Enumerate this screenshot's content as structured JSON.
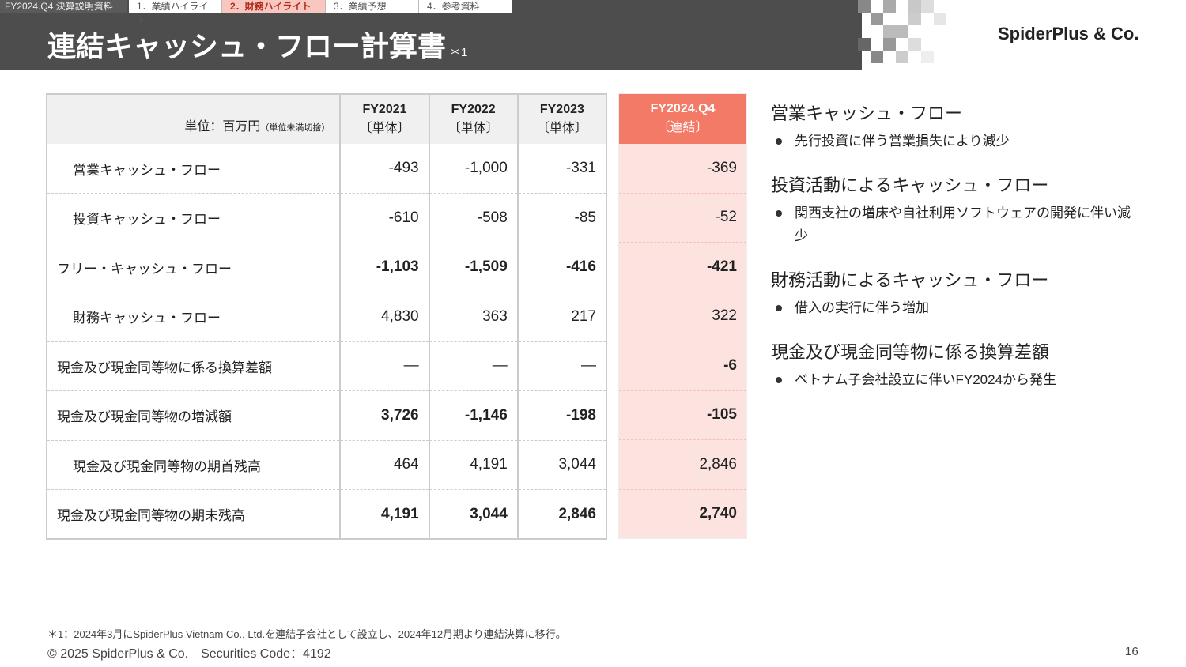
{
  "header": {
    "doc_label": "FY2024.Q4 決算説明資料",
    "tabs": [
      "1．業績ハイライト",
      "2．財務ハイライト",
      "3．業績予想",
      "4．参考資料"
    ],
    "active_tab": 1,
    "title": "連結キャッシュ・フロー計算書",
    "title_note": "＊1",
    "logo": "SpiderPlus & Co."
  },
  "table": {
    "unit_label": "単位：百万円",
    "unit_note": "（単位未満切捨）",
    "columns": [
      [
        "FY2021",
        "〔単体〕"
      ],
      [
        "FY2022",
        "〔単体〕"
      ],
      [
        "FY2023",
        "〔単体〕"
      ],
      [
        "FY2024.Q4",
        "〔連結〕"
      ]
    ],
    "rows": [
      {
        "label": "営業キャッシュ・フロー",
        "indent": true,
        "bold": false,
        "values": [
          "-493",
          "-1,000",
          "-331",
          "-369"
        ]
      },
      {
        "label": "投資キャッシュ・フロー",
        "indent": true,
        "bold": false,
        "values": [
          "-610",
          "-508",
          "-85",
          "-52"
        ]
      },
      {
        "label": "フリー・キャッシュ・フロー",
        "indent": false,
        "bold": true,
        "values": [
          "-1,103",
          "-1,509",
          "-416",
          "-421"
        ]
      },
      {
        "label": "財務キャッシュ・フロー",
        "indent": true,
        "bold": false,
        "values": [
          "4,830",
          "363",
          "217",
          "322"
        ]
      },
      {
        "label": "現金及び現金同等物に係る換算差額",
        "indent": false,
        "bold": false,
        "values": [
          "—",
          "—",
          "—",
          "-6"
        ]
      },
      {
        "label": "現金及び現金同等物の増減額",
        "indent": false,
        "bold": true,
        "values": [
          "3,726",
          "-1,146",
          "-198",
          "-105"
        ]
      },
      {
        "label": "現金及び現金同等物の期首残高",
        "indent": true,
        "bold": false,
        "values": [
          "464",
          "4,191",
          "3,044",
          "2,846"
        ]
      },
      {
        "label": "現金及び現金同等物の期末残高",
        "indent": false,
        "bold": true,
        "values": [
          "4,191",
          "3,044",
          "2,846",
          "2,740"
        ]
      }
    ]
  },
  "highlights": [
    {
      "heading": "営業キャッシュ・フロー",
      "bullets": [
        "先行投資に伴う営業損失により減少"
      ]
    },
    {
      "heading": "投資活動によるキャッシュ・フロー",
      "bullets": [
        "関西支社の増床や自社利用ソフトウェアの開発に伴い減少"
      ]
    },
    {
      "heading": "財務活動によるキャッシュ・フロー",
      "bullets": [
        "借入の実行に伴う増加"
      ]
    },
    {
      "heading": "現金及び現金同等物に係る換算差額",
      "bullets": [
        "ベトナム子会社設立に伴いFY2024から発生"
      ]
    }
  ],
  "footer": {
    "note": "＊1：2024年3月にSpiderPlus Vietnam Co., Ltd.を連結子会社として設立し、2024年12月期より連結決算に移行。",
    "copyright": "© 2025 SpiderPlus & Co.　Securities Code：4192",
    "page": "16"
  }
}
